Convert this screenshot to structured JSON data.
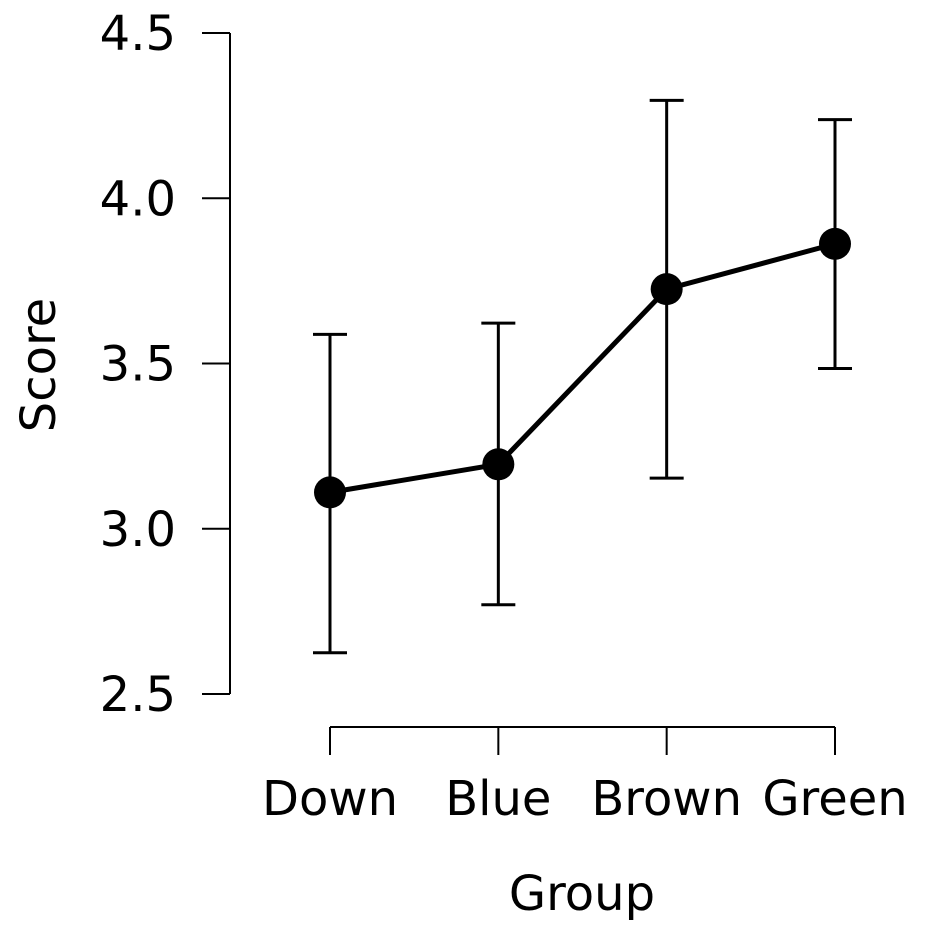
{
  "chart_data": {
    "type": "line",
    "categories": [
      "Down",
      "Blue",
      "Brown",
      "Green"
    ],
    "series": [
      {
        "values": [
          3.11,
          3.195,
          3.725,
          3.862
        ],
        "error_low": [
          2.625,
          2.77,
          3.153,
          3.485
        ],
        "error_high": [
          3.588,
          3.622,
          4.296,
          4.238
        ]
      }
    ],
    "xlabel": "Group",
    "ylabel": "Score",
    "ylim": [
      2.5,
      4.5
    ],
    "yticks": [
      2.5,
      3.0,
      3.5,
      4.0,
      4.5
    ],
    "ytick_labels": [
      "2.5",
      "3.0",
      "3.5",
      "4.0",
      "4.5"
    ],
    "grid": false,
    "legend": "none",
    "marker": "filled-circle",
    "line_color": "#000000",
    "background": "#ffffff"
  }
}
